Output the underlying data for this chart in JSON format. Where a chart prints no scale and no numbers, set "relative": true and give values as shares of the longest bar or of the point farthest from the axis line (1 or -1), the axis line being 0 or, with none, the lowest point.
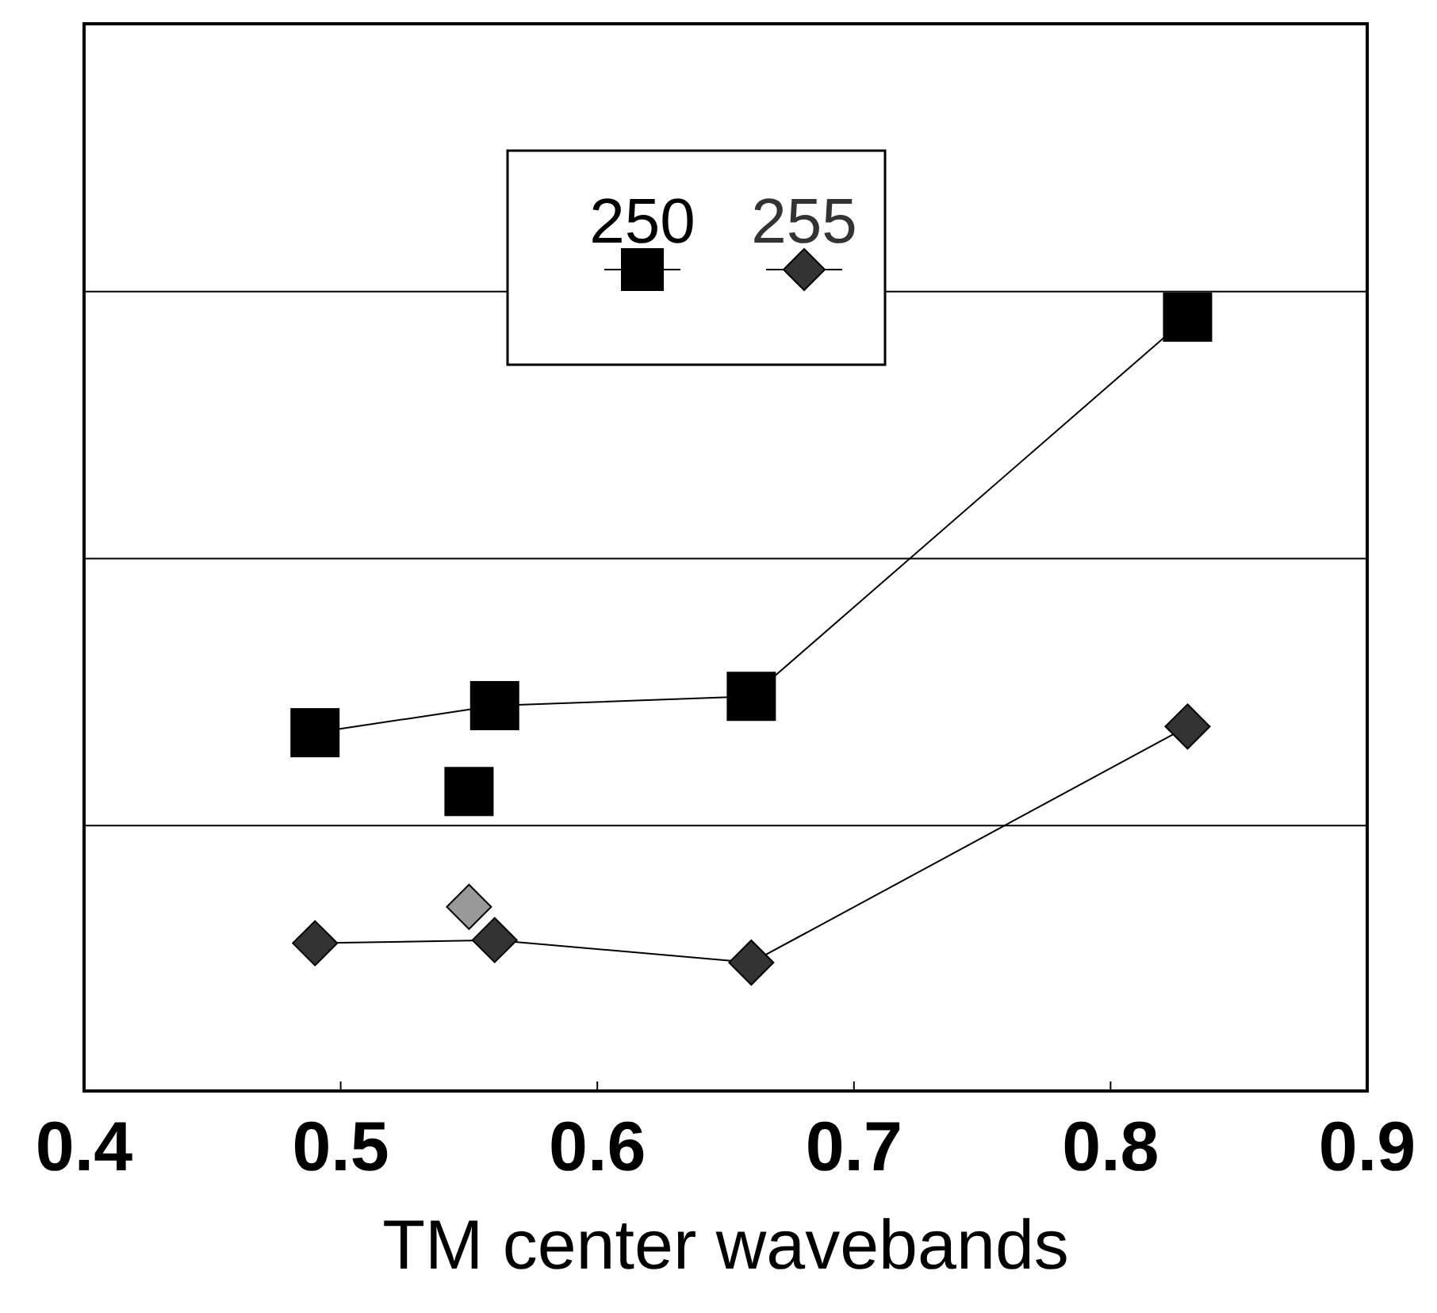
{
  "chart_data": {
    "type": "line",
    "xlabel": "TM center wavebands",
    "relative": true,
    "xlim": [
      0.4,
      0.9
    ],
    "xticks": [
      {
        "value": 0.4,
        "label": "0.4"
      },
      {
        "value": 0.5,
        "label": "0.5"
      },
      {
        "value": 0.6,
        "label": "0.6"
      },
      {
        "value": 0.7,
        "label": "0.7"
      },
      {
        "value": 0.8,
        "label": "0.8"
      },
      {
        "value": 0.9,
        "label": "0.9"
      }
    ],
    "tick_labels": "x",
    "legend": "top",
    "ref_lines": [
      {
        "axis": "y",
        "value": 0.343,
        "color": "#000000"
      },
      {
        "axis": "y",
        "value": 0.688,
        "color": "#000000"
      },
      {
        "axis": "y",
        "value": 1.033,
        "color": "#000000"
      }
    ],
    "series": [
      {
        "name": "250",
        "color": "#000000",
        "marker": "square",
        "x": [
          0.49,
          0.56,
          0.66,
          0.83
        ],
        "values": [
          0.463,
          0.498,
          0.51,
          1
        ]
      },
      {
        "name": "255",
        "color": "#333333",
        "marker": "diamond",
        "x": [
          0.49,
          0.56,
          0.66,
          0.83
        ],
        "values": [
          0.191,
          0.195,
          0.166,
          0.471
        ]
      },
      {
        "type": "scatter",
        "color": "#000000",
        "marker": "square",
        "x": [
          0.55
        ],
        "values": [
          0.387
        ]
      },
      {
        "type": "scatter",
        "color": "#999999",
        "marker": "diamond",
        "x": [
          0.55
        ],
        "values": [
          0.238
        ]
      }
    ]
  }
}
